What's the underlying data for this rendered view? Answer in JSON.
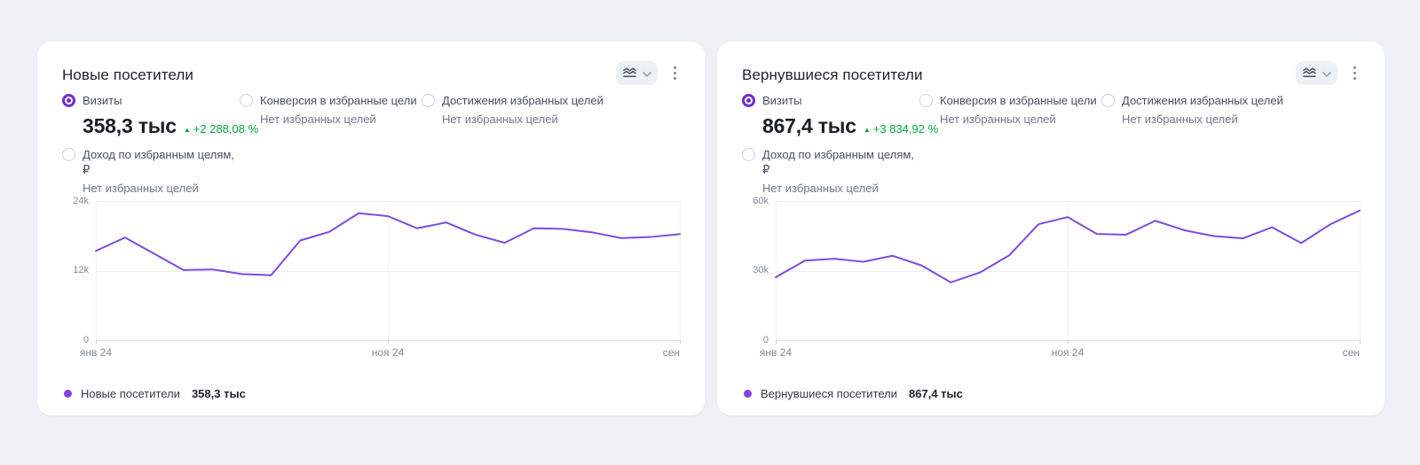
{
  "icons": {
    "delta_up": "▲",
    "toolbar": [
      "chart-type-icon",
      "chevron-down-icon",
      "kebab-menu-icon"
    ],
    "legend_marker": "series-dot-icon"
  },
  "colors": {
    "page_bg": "#edf0f4",
    "card_bg": "#ffffff",
    "line_purple": "#7b4ce0",
    "radio_purple": "#6c2ed6",
    "legend_dot_purple": "#8142e0",
    "positive_green": "#00a63f",
    "axis_text": "#7e8897",
    "grid": "#ebedf1"
  },
  "cards": [
    {
      "title": "Новые посетители",
      "metrics": [
        {
          "label": "Визиты",
          "selected": true,
          "value": "358,3 тыс",
          "delta": "+2 288,08 %"
        },
        {
          "label": "Конверсия в избранные цели",
          "selected": false,
          "sub": "Нет избранных целей"
        },
        {
          "label": "Достижения избранных целей",
          "selected": false,
          "sub": "Нет избранных целей"
        },
        {
          "label": "Доход по избранным целям, ₽",
          "selected": false,
          "sub": "Нет избранных целей"
        }
      ],
      "legend": {
        "label": "Новые посетители",
        "value": "358,3 тыс"
      },
      "chart_data": {
        "type": "line",
        "title": "Новые посетители",
        "values_unit": "тысячи визитов",
        "x_ticks": [
          "янв 24",
          "ноя 24",
          "сен"
        ],
        "yticks": [
          "0",
          "12k",
          "24k"
        ],
        "ylim": [
          0,
          24
        ],
        "grid": true,
        "legend_position": "bottom",
        "series": [
          {
            "name": "Новые посетители",
            "color": "#7b4ce0",
            "values": [
              15.4,
              17.7,
              14.9,
              12.1,
              12.2,
              11.4,
              11.2,
              17.2,
              18.7,
              21.9,
              21.4,
              19.3,
              20.3,
              18.2,
              16.8,
              19.3,
              19.2,
              18.6,
              17.6,
              17.8,
              18.3
            ]
          }
        ]
      }
    },
    {
      "title": "Вернувшиеся посетители",
      "metrics": [
        {
          "label": "Визиты",
          "selected": true,
          "value": "867,4 тыс",
          "delta": "+3 834,92 %"
        },
        {
          "label": "Конверсия в избранные цели",
          "selected": false,
          "sub": "Нет избранных целей"
        },
        {
          "label": "Достижения избранных целей",
          "selected": false,
          "sub": "Нет избранных целей"
        },
        {
          "label": "Доход по избранным целям, ₽",
          "selected": false,
          "sub": "Нет избранных целей"
        }
      ],
      "legend": {
        "label": "Вернувшиеся посетители",
        "value": "867,4 тыс"
      },
      "chart_data": {
        "type": "line",
        "title": "Вернувшиеся посетители",
        "values_unit": "тысячи визитов",
        "x_ticks": [
          "янв 24",
          "ноя 24",
          "сен"
        ],
        "yticks": [
          "0",
          "30k",
          "60k"
        ],
        "ylim": [
          0,
          60
        ],
        "grid": true,
        "legend_position": "bottom",
        "series": [
          {
            "name": "Вернувшиеся посетители",
            "color": "#7b4ce0",
            "values": [
              27.1,
              34.3,
              35.1,
              33.8,
              36.4,
              32.2,
              24.9,
              29.2,
              36.6,
              50.0,
              53.1,
              45.8,
              45.5,
              51.5,
              47.4,
              44.9,
              43.9,
              48.7,
              41.9,
              50.0,
              55.9
            ]
          }
        ]
      }
    }
  ]
}
